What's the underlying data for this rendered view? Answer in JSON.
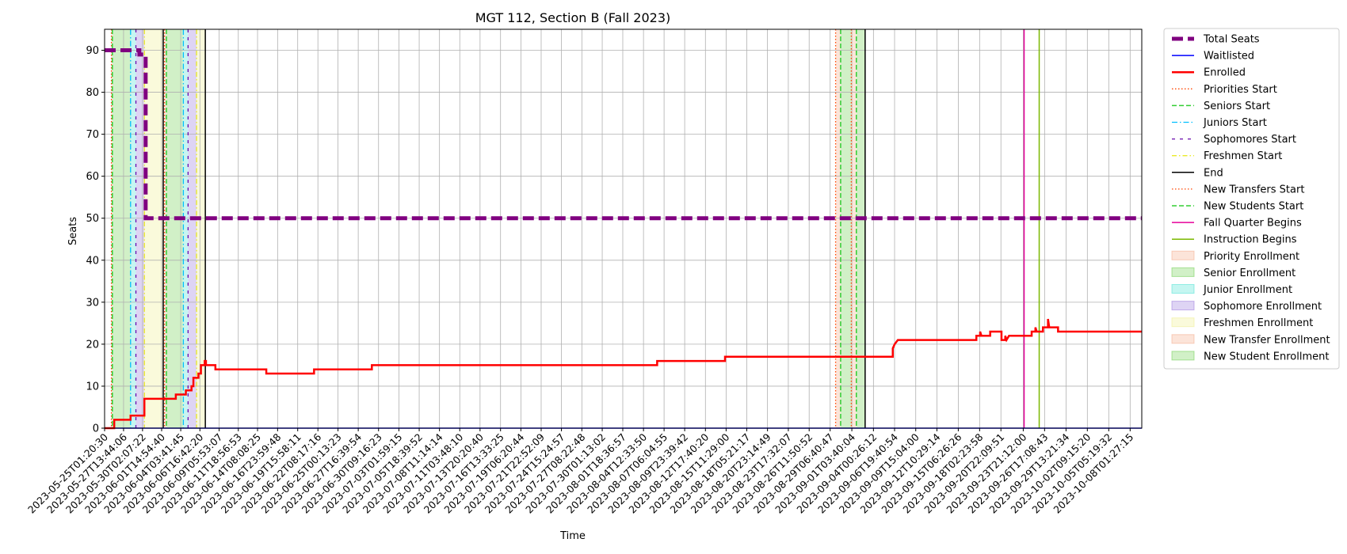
{
  "chart_data": {
    "type": "line",
    "title": "MGT 112, Section B (Fall 2023)",
    "xlabel": "Time",
    "ylabel": "Seats",
    "ylim": [
      0,
      95
    ],
    "yticks": [
      0,
      10,
      20,
      30,
      40,
      50,
      60,
      70,
      80,
      90
    ],
    "xlim": [
      "2023-05-25T01:20:30",
      "2023-10-09T14:30:00"
    ],
    "grid": true,
    "legend_position": "outside-right",
    "xticks": [
      "2023-05-25T01:20:30",
      "2023-05-27T13:44:06",
      "2023-05-30T02:07:22",
      "2023-06-01T14:54:40",
      "2023-06-04T03:41:45",
      "2023-06-06T16:42:20",
      "2023-06-09T05:53:07",
      "2023-06-11T18:56:53",
      "2023-06-14T08:08:25",
      "2023-06-16T23:59:48",
      "2023-06-19T15:58:11",
      "2023-06-22T08:17:16",
      "2023-06-25T00:13:23",
      "2023-06-27T16:39:54",
      "2023-06-30T09:16:23",
      "2023-07-03T01:59:15",
      "2023-07-05T18:39:52",
      "2023-07-08T11:14:14",
      "2023-07-11T03:48:10",
      "2023-07-13T20:20:40",
      "2023-07-16T13:33:25",
      "2023-07-19T06:20:44",
      "2023-07-21T22:52:09",
      "2023-07-24T15:24:57",
      "2023-07-27T08:22:48",
      "2023-07-30T01:13:02",
      "2023-08-01T18:36:57",
      "2023-08-04T12:33:50",
      "2023-08-07T06:04:55",
      "2023-08-09T23:39:42",
      "2023-08-12T17:40:20",
      "2023-08-15T11:29:00",
      "2023-08-18T05:21:17",
      "2023-08-20T23:14:49",
      "2023-08-23T17:32:07",
      "2023-08-26T11:50:52",
      "2023-08-29T06:40:47",
      "2023-09-01T03:40:04",
      "2023-09-04T00:26:12",
      "2023-09-06T19:40:54",
      "2023-09-09T15:04:00",
      "2023-09-12T10:29:14",
      "2023-09-15T06:26:26",
      "2023-09-18T02:23:58",
      "2023-09-20T22:09:51",
      "2023-09-23T21:12:00",
      "2023-09-26T17:08:43",
      "2023-09-29T13:21:34",
      "2023-10-02T09:15:20",
      "2023-10-05T05:19:32",
      "2023-10-08T01:27:15"
    ],
    "series": [
      {
        "name": "Total Seats",
        "color": "#800080",
        "style": "dashed-thick",
        "points": [
          [
            "2023-05-25T01:20:30",
            90
          ],
          [
            "2023-05-29T16:00:00",
            90
          ],
          [
            "2023-05-29T16:00:00",
            89
          ],
          [
            "2023-05-30T12:00:00",
            89
          ],
          [
            "2023-05-30T12:00:00",
            50
          ],
          [
            "2023-10-09T14:30:00",
            50
          ]
        ]
      },
      {
        "name": "Waitlisted",
        "color": "#0000ff",
        "style": "solid",
        "points": [
          [
            "2023-05-25T01:20:30",
            0
          ],
          [
            "2023-10-09T14:30:00",
            0
          ]
        ]
      },
      {
        "name": "Enrolled",
        "color": "#ff0000",
        "style": "solid-thick",
        "points": [
          [
            "2023-05-25T01:20:30",
            0
          ],
          [
            "2023-05-26T08:00:00",
            0
          ],
          [
            "2023-05-26T08:00:00",
            2
          ],
          [
            "2023-05-28T12:00:00",
            2
          ],
          [
            "2023-05-28T12:00:00",
            3
          ],
          [
            "2023-05-30T08:00:00",
            3
          ],
          [
            "2023-05-30T08:00:00",
            7
          ],
          [
            "2023-06-03T12:00:00",
            7
          ],
          [
            "2023-06-03T12:00:00",
            8
          ],
          [
            "2023-06-04T20:00:00",
            8
          ],
          [
            "2023-06-04T20:00:00",
            9
          ],
          [
            "2023-06-05T14:00:00",
            9
          ],
          [
            "2023-06-05T14:00:00",
            10
          ],
          [
            "2023-06-05T20:00:00",
            10
          ],
          [
            "2023-06-05T20:00:00",
            12
          ],
          [
            "2023-06-06T12:00:00",
            12
          ],
          [
            "2023-06-06T12:00:00",
            13
          ],
          [
            "2023-06-06T20:00:00",
            13
          ],
          [
            "2023-06-06T20:00:00",
            15
          ],
          [
            "2023-06-07T08:00:00",
            15
          ],
          [
            "2023-06-07T08:00:00",
            16
          ],
          [
            "2023-06-07T12:00:00",
            16
          ],
          [
            "2023-06-07T12:00:00",
            15
          ],
          [
            "2023-06-08T18:00:00",
            15
          ],
          [
            "2023-06-08T18:00:00",
            14
          ],
          [
            "2023-06-15T12:00:00",
            14
          ],
          [
            "2023-06-15T12:00:00",
            13
          ],
          [
            "2023-06-21T20:00:00",
            13
          ],
          [
            "2023-06-21T20:00:00",
            14
          ],
          [
            "2023-06-29T12:00:00",
            14
          ],
          [
            "2023-06-29T12:00:00",
            15
          ],
          [
            "2023-08-06T08:00:00",
            15
          ],
          [
            "2023-08-06T08:00:00",
            16
          ],
          [
            "2023-08-15T08:00:00",
            16
          ],
          [
            "2023-08-15T08:00:00",
            17
          ],
          [
            "2023-09-06T14:00:00",
            17
          ],
          [
            "2023-09-06T14:00:00",
            19
          ],
          [
            "2023-09-06T20:00:00",
            20
          ],
          [
            "2023-09-07T06:00:00",
            21
          ],
          [
            "2023-09-17T16:00:00",
            21
          ],
          [
            "2023-09-17T16:00:00",
            22
          ],
          [
            "2023-09-18T04:00:00",
            22
          ],
          [
            "2023-09-18T04:00:00",
            23
          ],
          [
            "2023-09-18T08:00:00",
            22
          ],
          [
            "2023-09-19T12:00:00",
            22
          ],
          [
            "2023-09-19T12:00:00",
            23
          ],
          [
            "2023-09-21T00:00:00",
            23
          ],
          [
            "2023-09-21T00:00:00",
            21
          ],
          [
            "2023-09-21T12:00:00",
            21
          ],
          [
            "2023-09-21T12:00:00",
            22
          ],
          [
            "2023-09-21T16:00:00",
            21
          ],
          [
            "2023-09-22T00:00:00",
            22
          ],
          [
            "2023-09-25T00:00:00",
            22
          ],
          [
            "2023-09-25T00:00:00",
            23
          ],
          [
            "2023-09-25T12:00:00",
            23
          ],
          [
            "2023-09-25T12:00:00",
            24
          ],
          [
            "2023-09-25T16:00:00",
            23
          ],
          [
            "2023-09-26T12:00:00",
            23
          ],
          [
            "2023-09-26T12:00:00",
            24
          ],
          [
            "2023-09-27T04:00:00",
            24
          ],
          [
            "2023-09-27T04:00:00",
            26
          ],
          [
            "2023-09-27T08:00:00",
            24
          ],
          [
            "2023-09-28T12:00:00",
            24
          ],
          [
            "2023-09-28T12:00:00",
            23
          ],
          [
            "2023-10-09T14:30:00",
            23
          ]
        ]
      }
    ],
    "period_spans": [
      {
        "name": "Priority Enrollment",
        "color": "#f4a582",
        "start": "2023-05-25T23:00:00",
        "end": "2023-05-26T02:00:00"
      },
      {
        "name": "Senior Enrollment",
        "color": "#66cc44",
        "start": "2023-05-26T02:00:00",
        "end": "2023-05-28T12:00:00"
      },
      {
        "name": "Junior Enrollment",
        "color": "#40e0d0",
        "start": "2023-05-28T12:00:00",
        "end": "2023-05-29T05:00:00"
      },
      {
        "name": "Sophomore Enrollment",
        "color": "#9370db",
        "start": "2023-05-29T05:00:00",
        "end": "2023-05-30T08:00:00"
      },
      {
        "name": "Freshmen Enrollment",
        "color": "#eeee88",
        "start": "2023-05-30T08:00:00",
        "end": "2023-06-01T20:00:00"
      },
      {
        "name": "Priority Enrollment",
        "color": "#f4a582",
        "start": "2023-06-02T00:00:00",
        "end": "2023-06-02T06:00:00"
      },
      {
        "name": "Senior Enrollment",
        "color": "#66cc44",
        "start": "2023-06-02T06:00:00",
        "end": "2023-06-04T12:00:00"
      },
      {
        "name": "Junior Enrollment",
        "color": "#40e0d0",
        "start": "2023-06-04T12:00:00",
        "end": "2023-06-05T03:00:00"
      },
      {
        "name": "Sophomore Enrollment",
        "color": "#9370db",
        "start": "2023-06-05T03:00:00",
        "end": "2023-06-06T06:00:00"
      },
      {
        "name": "Freshmen Enrollment",
        "color": "#eeee88",
        "start": "2023-06-06T06:00:00",
        "end": "2023-06-07T10:00:00"
      },
      {
        "name": "New Transfer Enrollment",
        "color": "#f4a582",
        "start": "2023-08-30T00:00:00",
        "end": "2023-08-30T16:00:00"
      },
      {
        "name": "New Student Enrollment",
        "color": "#66cc44",
        "start": "2023-08-30T16:00:00",
        "end": "2023-09-01T02:00:00"
      },
      {
        "name": "New Transfer Enrollment",
        "color": "#f4a582",
        "start": "2023-09-01T02:00:00",
        "end": "2023-09-01T18:00:00"
      },
      {
        "name": "New Student Enrollment",
        "color": "#66cc44",
        "start": "2023-09-01T18:00:00",
        "end": "2023-09-02T22:00:00"
      }
    ],
    "event_lines": [
      {
        "name": "Priorities Start",
        "color": "#ff4500",
        "style": "dotted",
        "dates": [
          "2023-05-25T23:00:00",
          "2023-06-02T00:00:00"
        ]
      },
      {
        "name": "Seniors Start",
        "color": "#32cd32",
        "style": "dashed",
        "dates": [
          "2023-05-26T02:00:00",
          "2023-06-02T06:00:00"
        ]
      },
      {
        "name": "Juniors Start",
        "color": "#00bfff",
        "style": "dashdot",
        "dates": [
          "2023-05-28T12:00:00",
          "2023-06-04T12:00:00"
        ]
      },
      {
        "name": "Sophomores Start",
        "color": "#6a0dad",
        "style": "densedash",
        "dates": [
          "2023-05-29T05:00:00",
          "2023-06-05T03:00:00"
        ]
      },
      {
        "name": "Freshmen Start",
        "color": "#e6e600",
        "style": "dashdot-light",
        "dates": [
          "2023-05-30T08:00:00",
          "2023-06-06T06:00:00"
        ]
      },
      {
        "name": "End",
        "color": "#000000",
        "style": "solid",
        "dates": [
          "2023-06-01T20:00:00",
          "2023-06-07T10:00:00",
          "2023-09-02T22:00:00"
        ]
      },
      {
        "name": "New Transfers Start",
        "color": "#ff4500",
        "style": "dotted",
        "dates": [
          "2023-08-30T00:00:00",
          "2023-09-01T02:00:00"
        ]
      },
      {
        "name": "New Students Start",
        "color": "#32cd32",
        "style": "dashed",
        "dates": [
          "2023-08-30T16:00:00",
          "2023-09-01T18:00:00"
        ]
      },
      {
        "name": "Fall Quarter Begins",
        "color": "#e6009a",
        "style": "solid",
        "dates": [
          "2023-09-24T00:00:00"
        ]
      },
      {
        "name": "Instruction Begins",
        "color": "#7ab800",
        "style": "solid",
        "dates": [
          "2023-09-26T00:00:00"
        ]
      }
    ],
    "legend": [
      {
        "label": "Total Seats",
        "kind": "line",
        "color": "#800080",
        "style": "dashed-thick"
      },
      {
        "label": "Waitlisted",
        "kind": "line",
        "color": "#0000ff",
        "style": "solid"
      },
      {
        "label": "Enrolled",
        "kind": "line",
        "color": "#ff0000",
        "style": "solid-thick"
      },
      {
        "label": "Priorities Start",
        "kind": "line",
        "color": "#ff4500",
        "style": "dotted"
      },
      {
        "label": "Seniors Start",
        "kind": "line",
        "color": "#32cd32",
        "style": "dashed"
      },
      {
        "label": "Juniors Start",
        "kind": "line",
        "color": "#00bfff",
        "style": "dashdot"
      },
      {
        "label": "Sophomores Start",
        "kind": "line",
        "color": "#6a0dad",
        "style": "densedash"
      },
      {
        "label": "Freshmen Start",
        "kind": "line",
        "color": "#e6e600",
        "style": "dashdot-light"
      },
      {
        "label": "End",
        "kind": "line",
        "color": "#000000",
        "style": "solid"
      },
      {
        "label": "New Transfers Start",
        "kind": "line",
        "color": "#ff4500",
        "style": "dotted"
      },
      {
        "label": "New Students Start",
        "kind": "line",
        "color": "#32cd32",
        "style": "dashed"
      },
      {
        "label": "Fall Quarter Begins",
        "kind": "line",
        "color": "#e6009a",
        "style": "solid"
      },
      {
        "label": "Instruction Begins",
        "kind": "line",
        "color": "#7ab800",
        "style": "solid"
      },
      {
        "label": "Priority Enrollment",
        "kind": "patch",
        "color": "#f4a582"
      },
      {
        "label": "Senior Enrollment",
        "kind": "patch",
        "color": "#66cc44"
      },
      {
        "label": "Junior Enrollment",
        "kind": "patch",
        "color": "#40e0d0"
      },
      {
        "label": "Sophomore Enrollment",
        "kind": "patch",
        "color": "#9370db"
      },
      {
        "label": "Freshmen Enrollment",
        "kind": "patch",
        "color": "#eeee88"
      },
      {
        "label": "New Transfer Enrollment",
        "kind": "patch",
        "color": "#f4a582"
      },
      {
        "label": "New Student Enrollment",
        "kind": "patch",
        "color": "#66cc44"
      }
    ]
  }
}
